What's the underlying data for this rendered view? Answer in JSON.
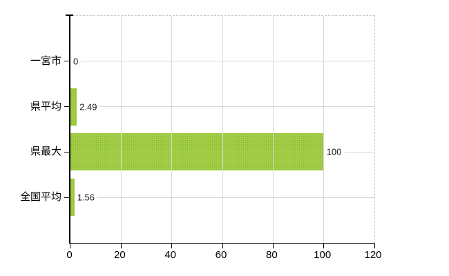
{
  "chart_data": {
    "type": "bar",
    "orientation": "horizontal",
    "title": "",
    "xlabel": "",
    "ylabel": "",
    "categories": [
      "一宮市",
      "県平均",
      "県最大",
      "全国平均"
    ],
    "values": [
      0,
      2.49,
      100,
      1.56
    ],
    "value_labels": [
      "0",
      "2.49",
      "100",
      "1.56"
    ],
    "xlim": [
      0,
      120
    ],
    "x_tick_values": [
      0,
      20,
      40,
      60,
      80,
      100,
      120
    ],
    "x_tick_labels": [
      "0",
      "20",
      "40",
      "60",
      "80",
      "100",
      "120"
    ],
    "grid": true,
    "legend": false,
    "colors": {
      "bar": "#9CC93C",
      "bar_dot_dark": "#88BB24",
      "bar_dot_light": "#AED65A",
      "vgrid": "#D9D9D9",
      "row_line": "#D4D4D4",
      "axis": "#000000",
      "border_dash": "#C8C8C8",
      "value_label_text": "#1A1A1A",
      "tick_label_text": "#000000",
      "background": "#FFFFFF"
    }
  }
}
